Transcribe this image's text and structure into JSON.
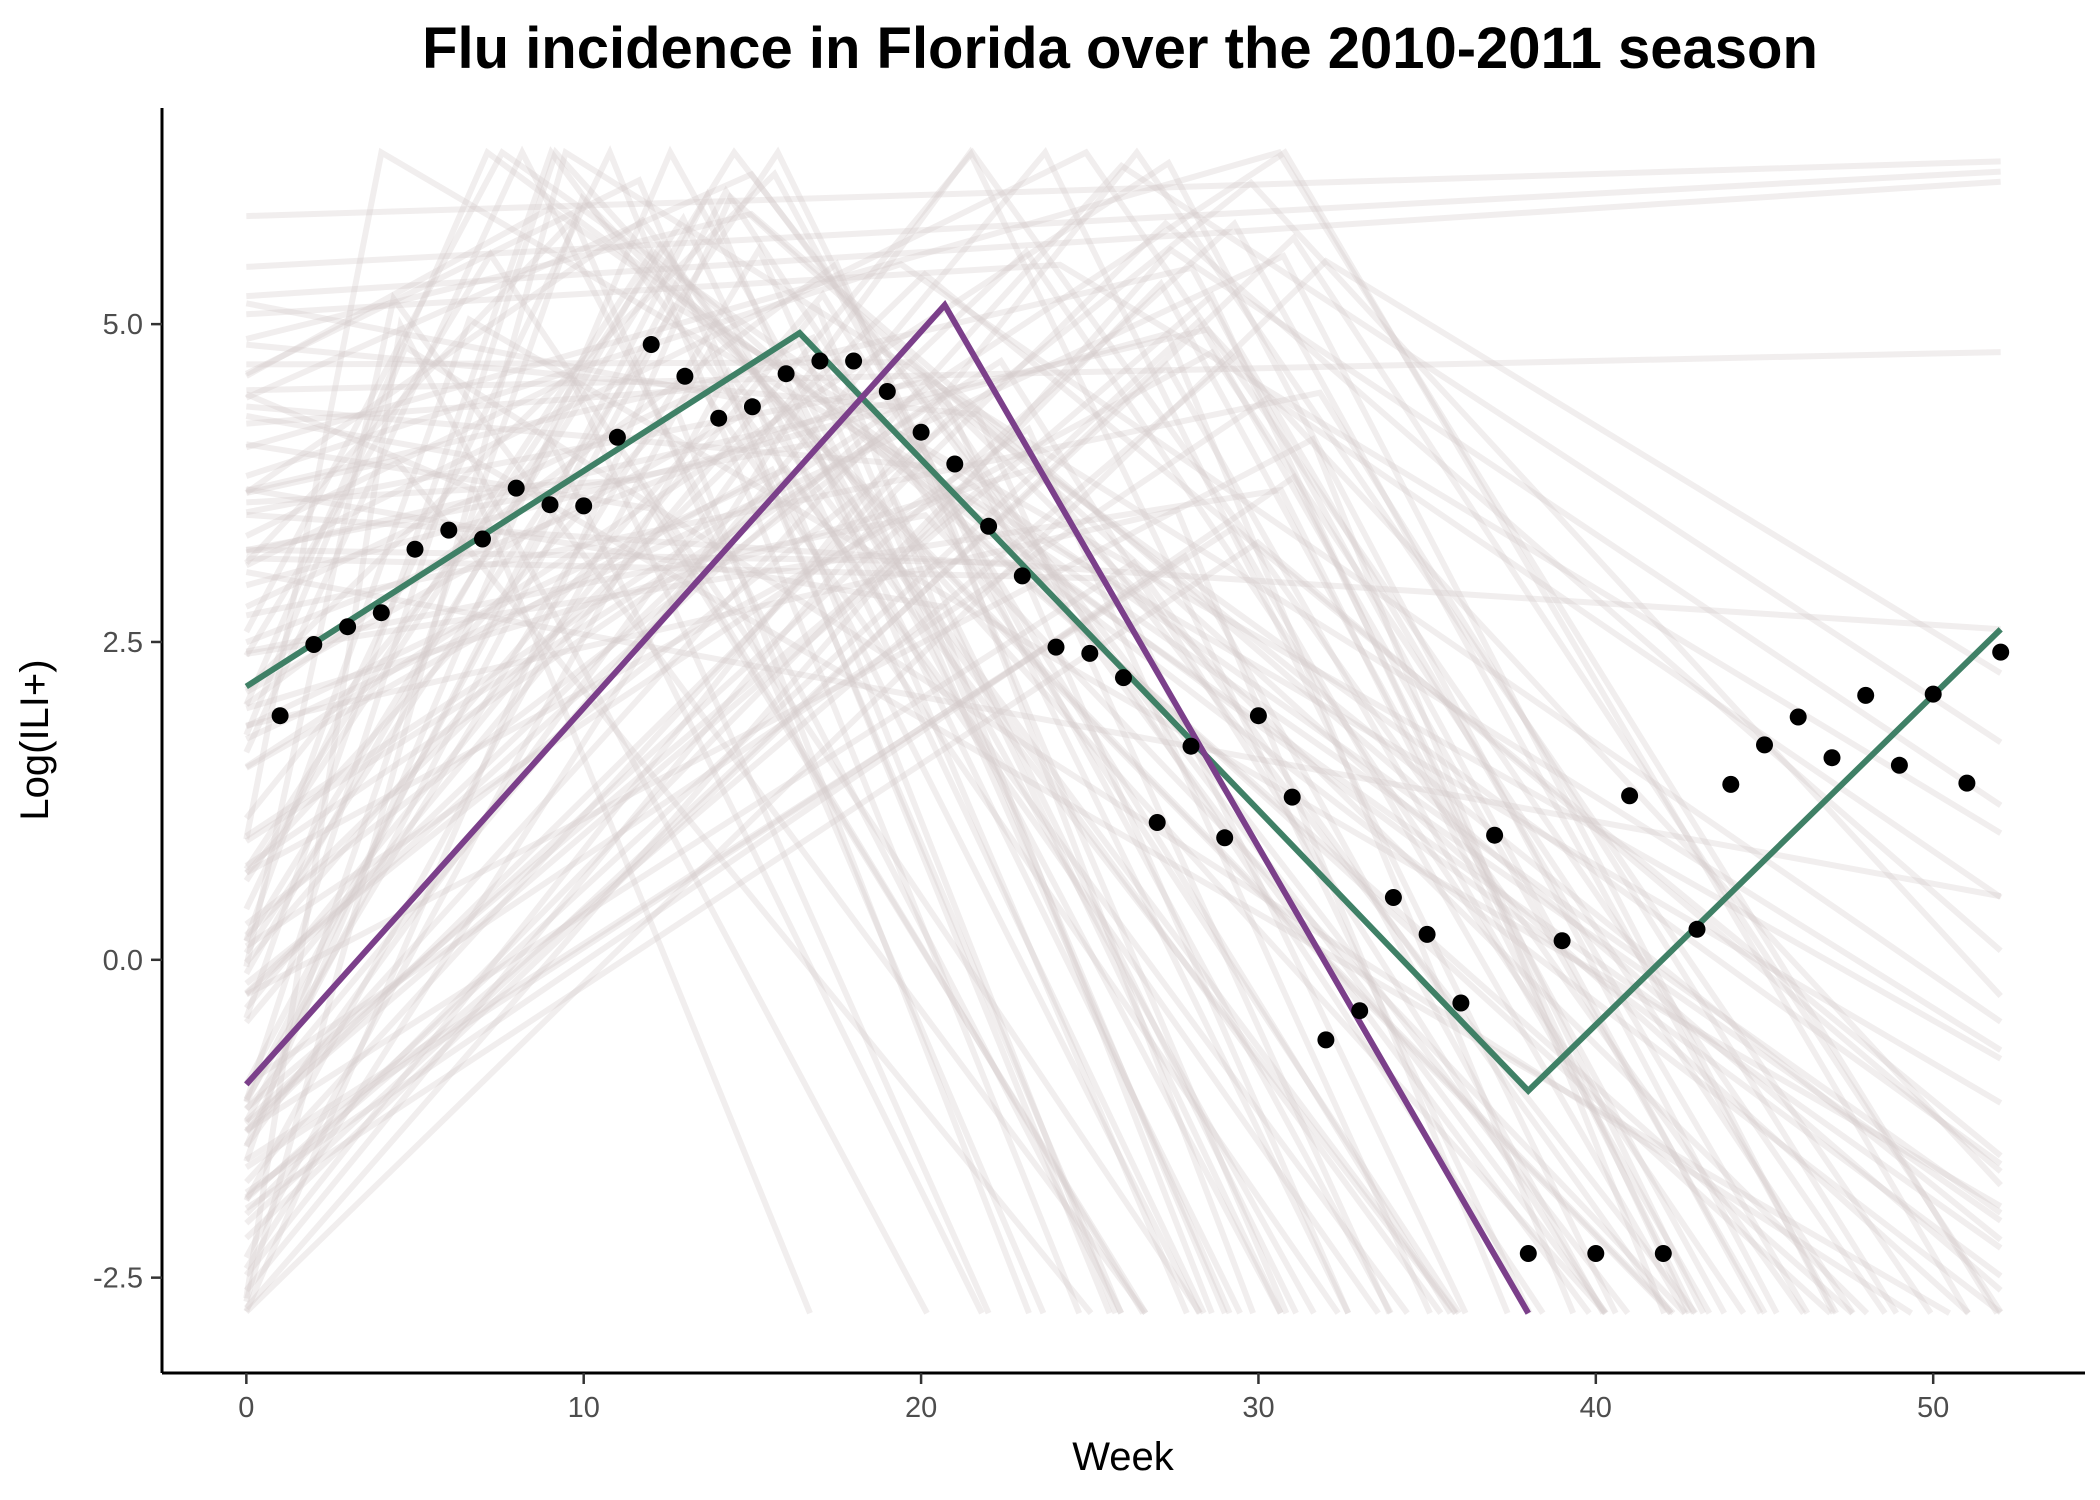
{
  "chart_data": {
    "type": "line",
    "title": "Flu incidence in Florida over the 2010-2011 season",
    "xlabel": "Week",
    "ylabel": "Log(ILI+)",
    "xlim": [
      -2.5,
      54.5
    ],
    "ylim": [
      -3.25,
      6.7
    ],
    "xticks": [
      0,
      10,
      20,
      30,
      40,
      50
    ],
    "xtick_labels": [
      "0",
      "10",
      "20",
      "30",
      "40",
      "50"
    ],
    "yticks": [
      -2.5,
      0.0,
      2.5,
      5.0
    ],
    "ytick_labels": [
      "-2.5",
      "0.0",
      "2.5",
      "5.0"
    ],
    "grid": false,
    "legend": "none",
    "colors": {
      "observed_points": "#000000",
      "green_fit": "#3f8066",
      "purple_fit": "#7b3f8a",
      "background_draws": "#d3cbcb"
    },
    "observed": {
      "x": [
        1,
        2,
        3,
        4,
        5,
        6,
        7,
        8,
        9,
        10,
        11,
        12,
        13,
        14,
        15,
        16,
        17,
        18,
        19,
        20,
        21,
        22,
        23,
        24,
        25,
        26,
        27,
        28,
        29,
        30,
        31,
        32,
        33,
        34,
        35,
        36,
        37,
        38,
        39,
        40,
        41,
        42,
        43,
        44,
        45,
        46,
        47,
        48,
        49,
        50,
        51,
        52
      ],
      "y": [
        1.92,
        2.48,
        2.62,
        2.73,
        3.23,
        3.38,
        3.31,
        3.71,
        3.58,
        3.57,
        4.11,
        4.84,
        4.59,
        4.26,
        4.35,
        4.61,
        4.71,
        4.71,
        4.47,
        4.15,
        3.9,
        3.41,
        3.02,
        2.46,
        2.41,
        2.22,
        1.08,
        1.68,
        0.96,
        1.92,
        1.28,
        -0.63,
        -0.4,
        0.49,
        0.2,
        -0.34,
        0.98,
        -2.31,
        0.15,
        -2.31,
        1.29,
        -2.31,
        0.24,
        1.38,
        1.69,
        1.91,
        1.59,
        2.08,
        1.53,
        2.09,
        1.39,
        2.42
      ]
    },
    "series": [
      {
        "x": [
          0,
          16.4,
          38,
          52
        ],
        "y": [
          2.15,
          4.93,
          -1.03,
          2.6
        ]
      },
      {
        "x": [
          0,
          20.7,
          38
        ],
        "y": [
          -0.98,
          5.15,
          -2.78
        ]
      }
    ]
  }
}
